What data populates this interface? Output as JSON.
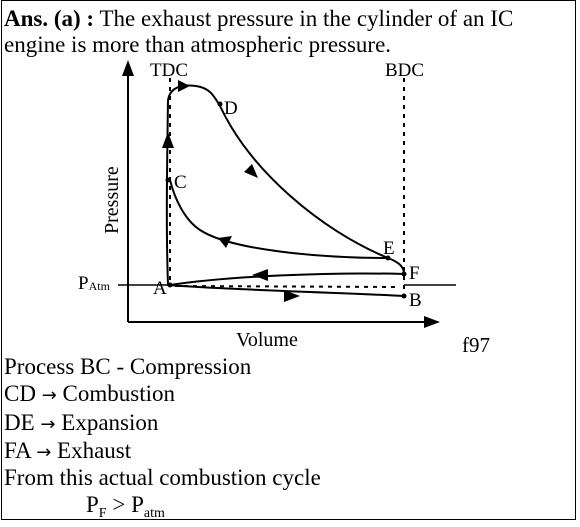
{
  "intro": {
    "label": "Ans. (a) :",
    "text_line1": "The exhaust pressure in the cylinder of an IC",
    "text_line2": "engine is more than atmospheric pressure."
  },
  "diagram": {
    "top_dead_center": "TDC",
    "bottom_dead_center": "BDC",
    "y_axis_label": "Pressure",
    "x_axis_label": "Volume",
    "atm_label_main": "P",
    "atm_label_sub": "Atm",
    "figure_id": "f97",
    "points": {
      "a": "A",
      "b": "B",
      "c": "C",
      "d": "D",
      "e": "E",
      "f": "F"
    }
  },
  "processes": {
    "bc": "Process BC -  Compression",
    "cd_from": "CD",
    "cd_to": "Combustion",
    "de_from": "DE",
    "de_to": "Expansion",
    "fa_from": "FA",
    "fa_to": "Exhaust",
    "arrow": "→"
  },
  "conclusion": {
    "text": "From this actual combustion cycle",
    "left_main": "P",
    "left_sub": "F",
    "operator": ">",
    "right_main": "P",
    "right_sub": "atm"
  }
}
